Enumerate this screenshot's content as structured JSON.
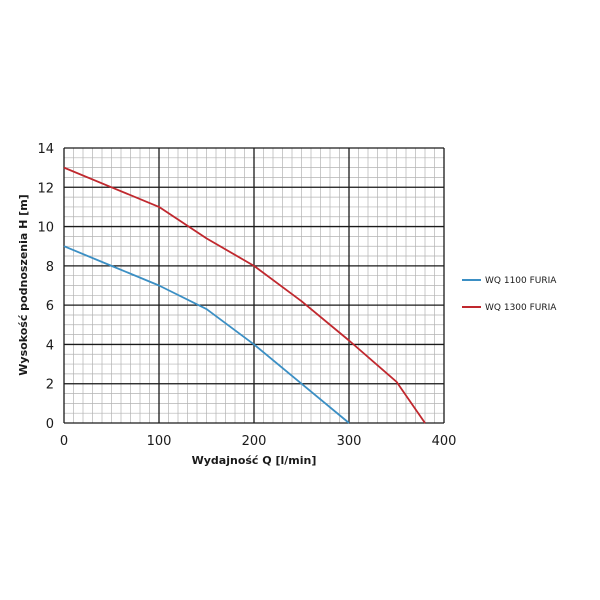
{
  "chart_data": {
    "type": "line",
    "xlabel": "Wydajność Q [l/min]",
    "ylabel": "Wysokość podnoszenia H [m]",
    "xlim": [
      0,
      400
    ],
    "ylim": [
      0,
      14
    ],
    "x_ticks": [
      0,
      100,
      200,
      300,
      400
    ],
    "y_ticks": [
      0,
      2,
      4,
      6,
      8,
      10,
      12,
      14
    ],
    "grid": true,
    "legend_position": "right",
    "series": [
      {
        "name": "WQ 1100 FURIA",
        "color": "#3b8fc4",
        "points": [
          [
            0,
            9
          ],
          [
            50,
            8
          ],
          [
            100,
            7
          ],
          [
            150,
            5.8
          ],
          [
            200,
            4
          ],
          [
            250,
            2
          ],
          [
            300,
            0
          ]
        ]
      },
      {
        "name": "WQ 1300 FURIA",
        "color": "#c0282e",
        "points": [
          [
            0,
            13
          ],
          [
            50,
            12
          ],
          [
            100,
            11
          ],
          [
            150,
            9.4
          ],
          [
            200,
            8
          ],
          [
            250,
            6.2
          ],
          [
            300,
            4.2
          ],
          [
            350,
            2.1
          ],
          [
            380,
            0
          ]
        ]
      }
    ]
  }
}
